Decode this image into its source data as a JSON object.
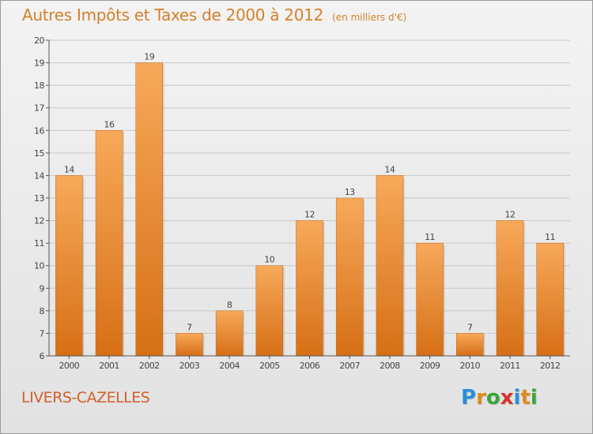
{
  "title": "Autres Impôts et Taxes de 2000 à 2012",
  "subtitle": "(en milliers d'€)",
  "place": "LIVERS-CAZELLES",
  "logo": {
    "letters": [
      "P",
      "r",
      "o",
      "x",
      "i",
      "t",
      "i"
    ],
    "colors": [
      "#2b8fd6",
      "#e08a1e",
      "#3aa63a",
      "#d8332a",
      "#2b8fd6",
      "#e08a1e",
      "#3aa63a"
    ]
  },
  "colors": {
    "bar_light": "#f7a95a",
    "bar_dark": "#d66f16",
    "axis": "#555555",
    "grid": "#c8c8c8",
    "text": "#444444"
  },
  "chart_data": {
    "type": "bar",
    "categories": [
      "2000",
      "2001",
      "2002",
      "2003",
      "2004",
      "2005",
      "2006",
      "2007",
      "2008",
      "2009",
      "2010",
      "2011",
      "2012"
    ],
    "values": [
      14,
      16,
      19,
      7,
      8,
      10,
      12,
      13,
      14,
      11,
      7,
      12,
      11
    ],
    "ylim": [
      6,
      20
    ],
    "yticks": [
      6,
      7,
      8,
      9,
      10,
      11,
      12,
      13,
      14,
      15,
      16,
      17,
      18,
      19,
      20
    ],
    "grid": true,
    "xlabel": "",
    "ylabel": ""
  }
}
